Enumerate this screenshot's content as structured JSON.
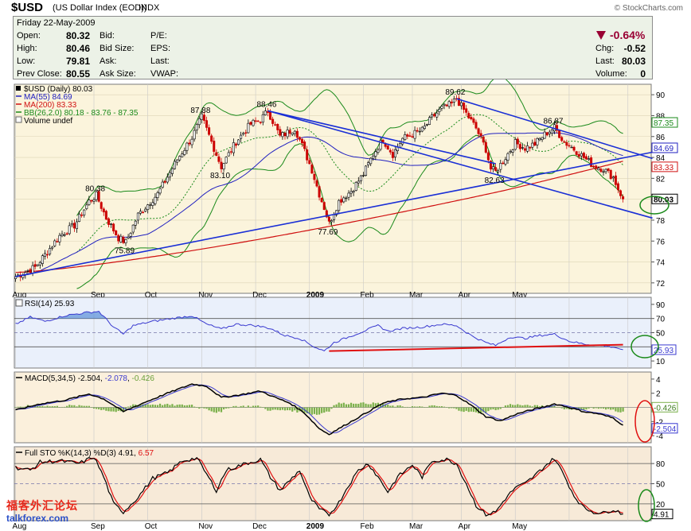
{
  "header": {
    "symbol": "$USD",
    "name": "(US Dollar Index (EOD))",
    "exchange": "INDX",
    "credit": "© StockCharts.com"
  },
  "quote": {
    "date_label": "Friday  22-May-2009",
    "open_label": "Open:",
    "open": "80.32",
    "high_label": "High:",
    "high": "80.46",
    "low_label": "Low:",
    "low": "79.81",
    "prev_close_label": "Prev Close:",
    "prev_close": "80.55",
    "bid_label": "Bid:",
    "bid_size_label": "Bid Size:",
    "ask_label": "Ask:",
    "ask_size_label": "Ask Size:",
    "pe_label": "P/E:",
    "eps_label": "EPS:",
    "last_label": "Last:",
    "vwap_label": "VWAP:",
    "chg_pct": "-0.64%",
    "chg_label": "Chg:",
    "chg": "-0.52",
    "last_label2": "Last:",
    "last": "80.03",
    "volume_label": "Volume:",
    "volume": "0"
  },
  "watermark": {
    "cn": "福客外汇论坛",
    "site": "talkforex.com"
  },
  "colors": {
    "up": "#000000",
    "down": "#cc0000",
    "ma55": "#2020c0",
    "ma200": "#d01010",
    "bb": "#1a8a1a",
    "trend": "#1a2fd6"
  },
  "chart_data": {
    "type": "candlestick",
    "x_labels": [
      "Aug",
      "Sep",
      "Oct",
      "Nov",
      "Dec",
      "2009",
      "Feb",
      "Mar",
      "Apr",
      "May"
    ],
    "price": {
      "legend": "$USD (Daily) 80.03",
      "ma55_legend": "MA(55) 84.69",
      "ma200_legend": "MA(200) 83.33",
      "bb_legend": "BB(26,2.0) 80.18 - 83.76 - 87.35",
      "volume_legend": "Volume undef",
      "ylim": [
        71,
        91
      ],
      "y_ticks": [
        72,
        74,
        76,
        78,
        80,
        82,
        84,
        86,
        88,
        90
      ],
      "annotations": [
        {
          "label": "80.38",
          "value": 80.38
        },
        {
          "label": "75.89",
          "value": 75.89
        },
        {
          "label": "87.88",
          "value": 87.88
        },
        {
          "label": "83.10",
          "value": 83.1
        },
        {
          "label": "88.46",
          "value": 88.46
        },
        {
          "label": "77.69",
          "value": 77.69
        },
        {
          "label": "89.62",
          "value": 89.62
        },
        {
          "label": "82.63",
          "value": 82.63
        },
        {
          "label": "86.87",
          "value": 86.87
        }
      ],
      "right_tags": [
        {
          "label": "87.35",
          "value": 87.35
        },
        {
          "label": "84.69",
          "value": 84.69
        },
        {
          "label": "83.33",
          "value": 83.33
        },
        {
          "label": "80.03",
          "value": 80.03
        }
      ],
      "anchors": [
        [
          0,
          72.6
        ],
        [
          8,
          73.5
        ],
        [
          18,
          76.5
        ],
        [
          24,
          77.5
        ],
        [
          30,
          79.8
        ],
        [
          33,
          80.38
        ],
        [
          37,
          78.2
        ],
        [
          42,
          76.3
        ],
        [
          45,
          75.89
        ],
        [
          50,
          78.5
        ],
        [
          58,
          80.5
        ],
        [
          66,
          83.8
        ],
        [
          72,
          85.9
        ],
        [
          76,
          87.88
        ],
        [
          80,
          85.5
        ],
        [
          84,
          83.1
        ],
        [
          90,
          85.5
        ],
        [
          96,
          87.2
        ],
        [
          100,
          87.6
        ],
        [
          103,
          88.46
        ],
        [
          108,
          86.0
        ],
        [
          114,
          86.8
        ],
        [
          118,
          84.6
        ],
        [
          121,
          82.8
        ],
        [
          124,
          80.5
        ],
        [
          126,
          79.2
        ],
        [
          128,
          77.69
        ],
        [
          132,
          79.8
        ],
        [
          137,
          80.8
        ],
        [
          142,
          82.4
        ],
        [
          146,
          84.3
        ],
        [
          150,
          85.7
        ],
        [
          154,
          84.3
        ],
        [
          158,
          85.8
        ],
        [
          162,
          86.2
        ],
        [
          166,
          86.6
        ],
        [
          170,
          87.8
        ],
        [
          174,
          88.7
        ],
        [
          178,
          89.1
        ],
        [
          180,
          89.62
        ],
        [
          184,
          88.2
        ],
        [
          188,
          86.8
        ],
        [
          192,
          84.8
        ],
        [
          194,
          82.9
        ],
        [
          196,
          82.63
        ],
        [
          200,
          84.0
        ],
        [
          204,
          85.4
        ],
        [
          208,
          84.9
        ],
        [
          212,
          85.3
        ],
        [
          216,
          86.2
        ],
        [
          220,
          86.87
        ],
        [
          224,
          85.5
        ],
        [
          228,
          84.8
        ],
        [
          232,
          84.0
        ],
        [
          236,
          83.2
        ],
        [
          240,
          82.9
        ],
        [
          244,
          82.1
        ],
        [
          246,
          81.0
        ],
        [
          248,
          80.03
        ]
      ],
      "trendlines": [
        {
          "from": [
            0,
            72.6
          ],
          "to": [
            260,
            84.5
          ]
        },
        {
          "from": [
            103,
            88.46
          ],
          "to": [
            260,
            78.2
          ]
        },
        {
          "from": [
            180,
            89.62
          ],
          "to": [
            260,
            83.9
          ]
        },
        {
          "from": [
            103,
            88.46
          ],
          "to": [
            196,
            83.4
          ]
        }
      ]
    },
    "rsi": {
      "legend": "RSI(14) 25.93",
      "ylim": [
        0,
        100
      ],
      "y_ticks": [
        10,
        30,
        50,
        70,
        90
      ],
      "levels": [
        30,
        50,
        70
      ],
      "last": 25.93,
      "last_label": "25.93",
      "anchors": [
        [
          0,
          62
        ],
        [
          6,
          72
        ],
        [
          12,
          66
        ],
        [
          20,
          74
        ],
        [
          28,
          78
        ],
        [
          34,
          80
        ],
        [
          40,
          58
        ],
        [
          44,
          48
        ],
        [
          48,
          60
        ],
        [
          56,
          66
        ],
        [
          64,
          70
        ],
        [
          72,
          74
        ],
        [
          78,
          62
        ],
        [
          84,
          55
        ],
        [
          90,
          62
        ],
        [
          98,
          60
        ],
        [
          104,
          56
        ],
        [
          110,
          46
        ],
        [
          116,
          42
        ],
        [
          122,
          30
        ],
        [
          126,
          24
        ],
        [
          130,
          36
        ],
        [
          136,
          44
        ],
        [
          142,
          52
        ],
        [
          148,
          60
        ],
        [
          152,
          52
        ],
        [
          158,
          56
        ],
        [
          166,
          58
        ],
        [
          174,
          62
        ],
        [
          180,
          60
        ],
        [
          186,
          46
        ],
        [
          192,
          36
        ],
        [
          196,
          32
        ],
        [
          202,
          44
        ],
        [
          208,
          42
        ],
        [
          214,
          46
        ],
        [
          220,
          48
        ],
        [
          226,
          38
        ],
        [
          232,
          34
        ],
        [
          238,
          32
        ],
        [
          244,
          30
        ],
        [
          248,
          25.9
        ]
      ],
      "support_line": {
        "from": [
          128,
          24
        ],
        "to": [
          248,
          33
        ]
      }
    },
    "macd": {
      "legend_name": "MACD(5,34,5)",
      "macd": -2.504,
      "signal": -2.078,
      "histogram": -0.426,
      "macd_label": "-2.504",
      "signal_label": "-2.078",
      "histogram_label": "-0.426",
      "ylim": [
        -5,
        5
      ],
      "y_ticks": [
        -4,
        -2,
        0,
        2,
        4
      ],
      "anchors": [
        [
          0,
          -0.4
        ],
        [
          10,
          0.5
        ],
        [
          20,
          1.0
        ],
        [
          30,
          1.9
        ],
        [
          36,
          1.2
        ],
        [
          44,
          -0.6
        ],
        [
          52,
          0.6
        ],
        [
          62,
          2.0
        ],
        [
          72,
          3.3
        ],
        [
          78,
          3.0
        ],
        [
          84,
          1.4
        ],
        [
          92,
          1.8
        ],
        [
          100,
          2.3
        ],
        [
          106,
          1.4
        ],
        [
          112,
          0.6
        ],
        [
          118,
          -0.8
        ],
        [
          124,
          -3.0
        ],
        [
          128,
          -3.8
        ],
        [
          134,
          -2.6
        ],
        [
          142,
          -1.0
        ],
        [
          150,
          0.6
        ],
        [
          158,
          1.2
        ],
        [
          166,
          1.4
        ],
        [
          174,
          2.0
        ],
        [
          180,
          1.7
        ],
        [
          186,
          0.3
        ],
        [
          192,
          -1.3
        ],
        [
          198,
          -1.9
        ],
        [
          204,
          -1.0
        ],
        [
          210,
          -0.4
        ],
        [
          216,
          0.1
        ],
        [
          220,
          0.5
        ],
        [
          226,
          0.0
        ],
        [
          232,
          -0.6
        ],
        [
          238,
          -0.9
        ],
        [
          244,
          -1.5
        ],
        [
          248,
          -2.5
        ]
      ]
    },
    "sto": {
      "legend_name": "Full STO %K(14,3) %D(3)",
      "k": 4.91,
      "d": 6.57,
      "k_label": "4.91",
      "d_label": "6.57",
      "k_tag": "4.91",
      "ylim": [
        -5,
        105
      ],
      "y_ticks": [
        20,
        50,
        80
      ],
      "levels": [
        20,
        50,
        80
      ],
      "anchors": [
        [
          0,
          74
        ],
        [
          6,
          70
        ],
        [
          10,
          82
        ],
        [
          18,
          84
        ],
        [
          26,
          80
        ],
        [
          32,
          90
        ],
        [
          36,
          60
        ],
        [
          40,
          20
        ],
        [
          44,
          8
        ],
        [
          50,
          30
        ],
        [
          56,
          58
        ],
        [
          62,
          66
        ],
        [
          68,
          84
        ],
        [
          74,
          88
        ],
        [
          78,
          64
        ],
        [
          82,
          40
        ],
        [
          86,
          70
        ],
        [
          94,
          80
        ],
        [
          100,
          86
        ],
        [
          104,
          60
        ],
        [
          108,
          40
        ],
        [
          112,
          55
        ],
        [
          116,
          70
        ],
        [
          120,
          30
        ],
        [
          124,
          12
        ],
        [
          128,
          4
        ],
        [
          132,
          22
        ],
        [
          136,
          48
        ],
        [
          140,
          70
        ],
        [
          144,
          80
        ],
        [
          148,
          60
        ],
        [
          152,
          38
        ],
        [
          156,
          60
        ],
        [
          162,
          78
        ],
        [
          166,
          60
        ],
        [
          170,
          84
        ],
        [
          176,
          86
        ],
        [
          180,
          80
        ],
        [
          184,
          50
        ],
        [
          188,
          18
        ],
        [
          192,
          4
        ],
        [
          196,
          8
        ],
        [
          200,
          28
        ],
        [
          204,
          44
        ],
        [
          208,
          50
        ],
        [
          212,
          62
        ],
        [
          216,
          76
        ],
        [
          220,
          88
        ],
        [
          224,
          62
        ],
        [
          228,
          32
        ],
        [
          232,
          14
        ],
        [
          236,
          8
        ],
        [
          240,
          6
        ],
        [
          244,
          12
        ],
        [
          248,
          4.9
        ]
      ]
    }
  }
}
